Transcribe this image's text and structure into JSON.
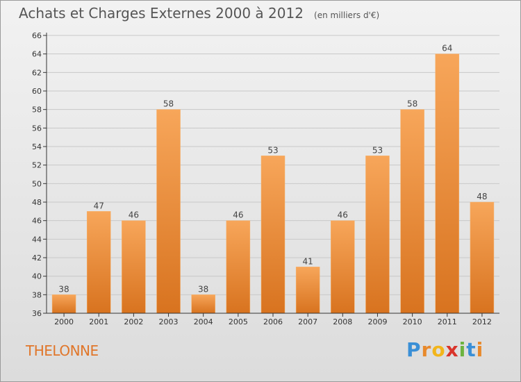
{
  "title": "Achats et Charges Externes 2000 à 2012",
  "subtitle": "(en milliers d'€)",
  "commune": "THELONNE",
  "logo": {
    "letters": [
      "P",
      "r",
      "o",
      "x",
      "i",
      "t",
      "i"
    ],
    "colors": [
      "#3a8fd6",
      "#e8892b",
      "#f2b51b",
      "#d9342b",
      "#6cb33f",
      "#3a8fd6",
      "#e8892b"
    ]
  },
  "colors": {
    "bar_top": "#f7a65a",
    "bar_bottom": "#d8731f",
    "axis": "#333333",
    "grid": "#c8c8c8",
    "commune_text": "#e0762a"
  },
  "chart_data": {
    "type": "bar",
    "categories": [
      "2000",
      "2001",
      "2002",
      "2003",
      "2004",
      "2005",
      "2006",
      "2007",
      "2008",
      "2009",
      "2010",
      "2011",
      "2012"
    ],
    "values": [
      38,
      47,
      46,
      58,
      38,
      46,
      53,
      41,
      46,
      53,
      58,
      64,
      48
    ],
    "title": "Achats et Charges Externes 2000 à 2012",
    "xlabel": "",
    "ylabel": "",
    "ylim": [
      36,
      66
    ],
    "yticks": [
      36,
      38,
      40,
      42,
      44,
      46,
      48,
      50,
      52,
      54,
      56,
      58,
      60,
      62,
      64,
      66
    ],
    "grid": true,
    "data_labels": true
  }
}
